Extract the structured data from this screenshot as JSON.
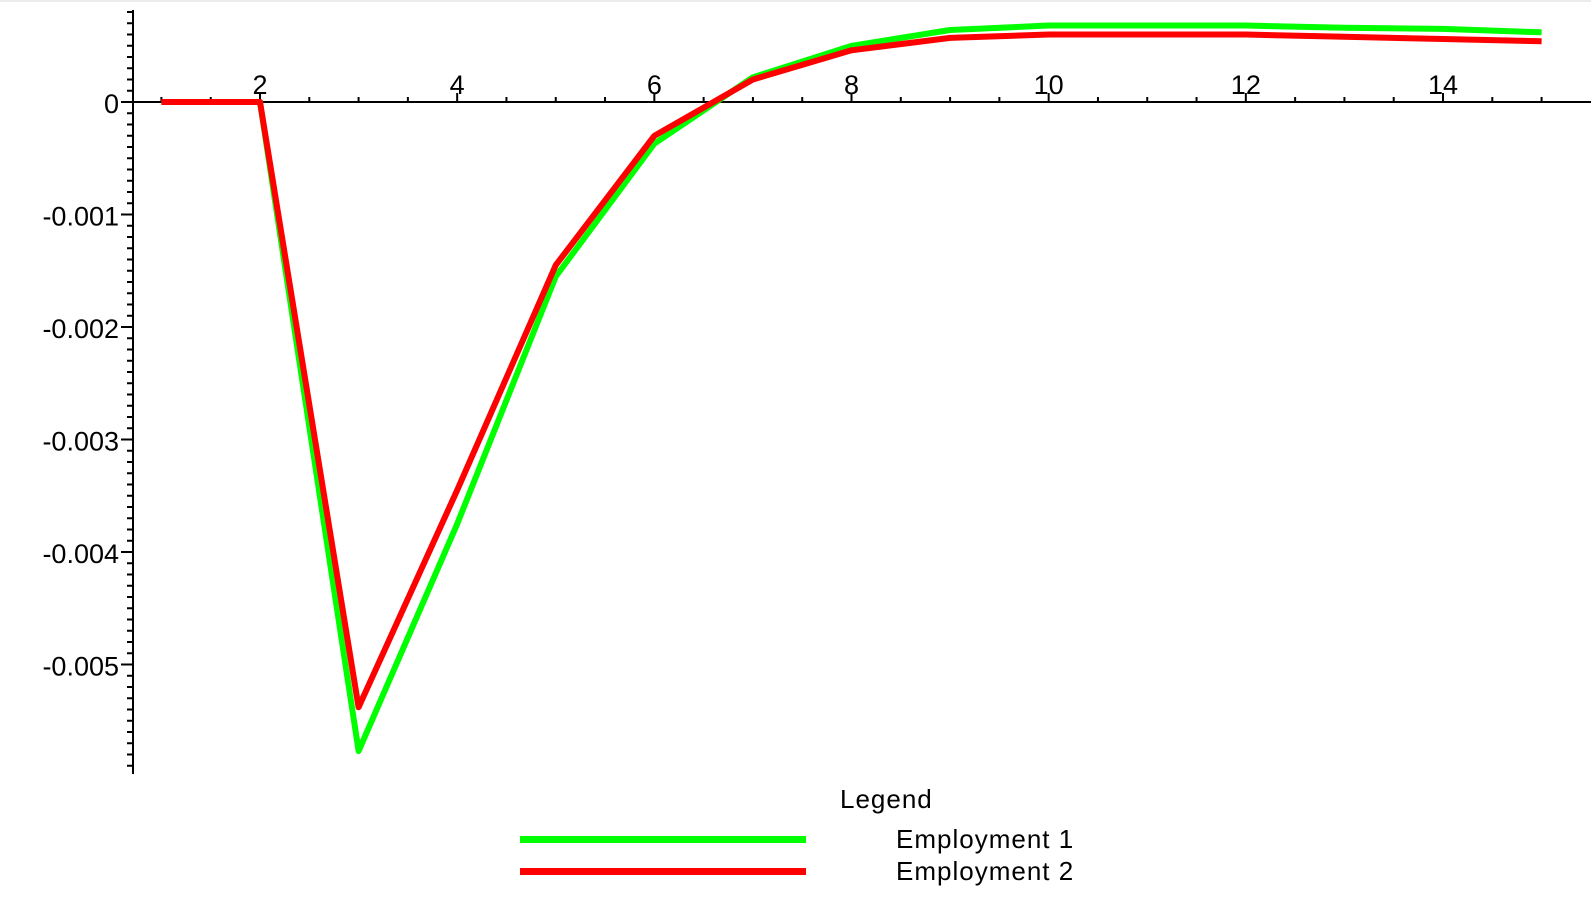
{
  "chart_data": {
    "type": "line",
    "title": "",
    "xlabel": "",
    "ylabel": "",
    "xlim": [
      0.8,
      15.1
    ],
    "ylim": [
      -0.0059,
      0.0008
    ],
    "x_ticks": [
      2,
      4,
      6,
      8,
      10,
      12,
      14
    ],
    "y_ticks": [
      0,
      -0.001,
      -0.002,
      -0.003,
      -0.004,
      -0.005
    ],
    "y_tick_labels": [
      "0",
      "-0.001",
      "-0.002",
      "-0.003",
      "-0.004",
      "-0.005"
    ],
    "grid": false,
    "legend": {
      "title": "Legend",
      "placement": "bottom"
    },
    "x": [
      1,
      2,
      3,
      4,
      5,
      6,
      7,
      8,
      9,
      10,
      11,
      12,
      13,
      14,
      15
    ],
    "series": [
      {
        "name": "Employment 1",
        "color": "#00ff00",
        "values": [
          0,
          0,
          -0.00577,
          -0.00375,
          -0.00155,
          -0.00037,
          0.00022,
          0.0005,
          0.00064,
          0.00068,
          0.00068,
          0.00068,
          0.00066,
          0.00065,
          0.00062
        ]
      },
      {
        "name": "Employment 2",
        "color": "#ff0000",
        "values": [
          0,
          0,
          -0.00538,
          -0.00345,
          -0.00145,
          -0.0003,
          0.0002,
          0.00046,
          0.00057,
          0.0006,
          0.0006,
          0.0006,
          0.00058,
          0.00056,
          0.00054
        ]
      }
    ]
  }
}
